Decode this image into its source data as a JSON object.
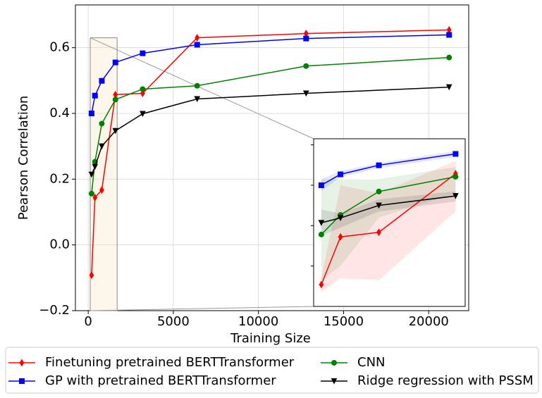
{
  "chart_data": {
    "type": "line",
    "x_label": "Training Size",
    "y_label": "Pearson Correlation",
    "x": [
      200,
      400,
      800,
      1600,
      3200,
      6400,
      12800,
      21200
    ],
    "xlim": [
      -750,
      22350
    ],
    "ylim": [
      -0.2,
      0.73
    ],
    "xticks": [
      0,
      5000,
      10000,
      15000,
      20000
    ],
    "yticks": [
      {
        "value": -0.2,
        "label": "−0.2"
      },
      {
        "value": 0.0,
        "label": "0.0"
      },
      0.2,
      0.4,
      0.6
    ],
    "grid": true,
    "legend": "below",
    "series": [
      {
        "name": "Finetuning pretrained BERTTransformer",
        "color": "#ff0000",
        "marker": "diamond",
        "values": [
          -0.092,
          0.144,
          0.167,
          0.457,
          0.461,
          0.63,
          0.643,
          0.654
        ],
        "band_lower": [
          -0.13,
          -0.06,
          -0.07,
          0.27
        ],
        "band_upper": [
          -0.06,
          0.4,
          0.36,
          0.52
        ]
      },
      {
        "name": "GP with pretrained BERTTransformer",
        "color": "#0000ff",
        "marker": "square",
        "values": [
          0.4,
          0.454,
          0.499,
          0.555,
          0.583,
          0.609,
          0.628,
          0.639
        ],
        "band_lower": [
          0.37,
          0.44,
          0.485,
          0.54
        ],
        "band_upper": [
          0.43,
          0.47,
          0.51,
          0.57
        ]
      },
      {
        "name": "CNN",
        "color": "#008000",
        "marker": "circle",
        "values": [
          0.156,
          0.253,
          0.369,
          0.442,
          0.474,
          0.484,
          0.544,
          0.57
        ],
        "band_lower": [
          -0.07,
          0.0,
          0.24,
          0.36
        ],
        "band_upper": [
          0.43,
          0.43,
          0.43,
          0.49
        ]
      },
      {
        "name": "Ridge regression with PSSM",
        "color": "#000000",
        "marker": "triangle-down",
        "values": [
          0.214,
          0.238,
          0.3,
          0.347,
          0.399,
          0.444,
          0.461,
          0.48
        ],
        "band_lower": [
          0.15,
          0.19,
          0.27,
          0.32
        ],
        "band_upper": [
          0.28,
          0.26,
          0.33,
          0.37
        ]
      }
    ],
    "inset": {
      "xlim": [
        120,
        1700
      ],
      "ylim": [
        -0.2,
        0.63
      ],
      "yticks": [
        0.0,
        0.2,
        0.4,
        0.6
      ]
    }
  }
}
